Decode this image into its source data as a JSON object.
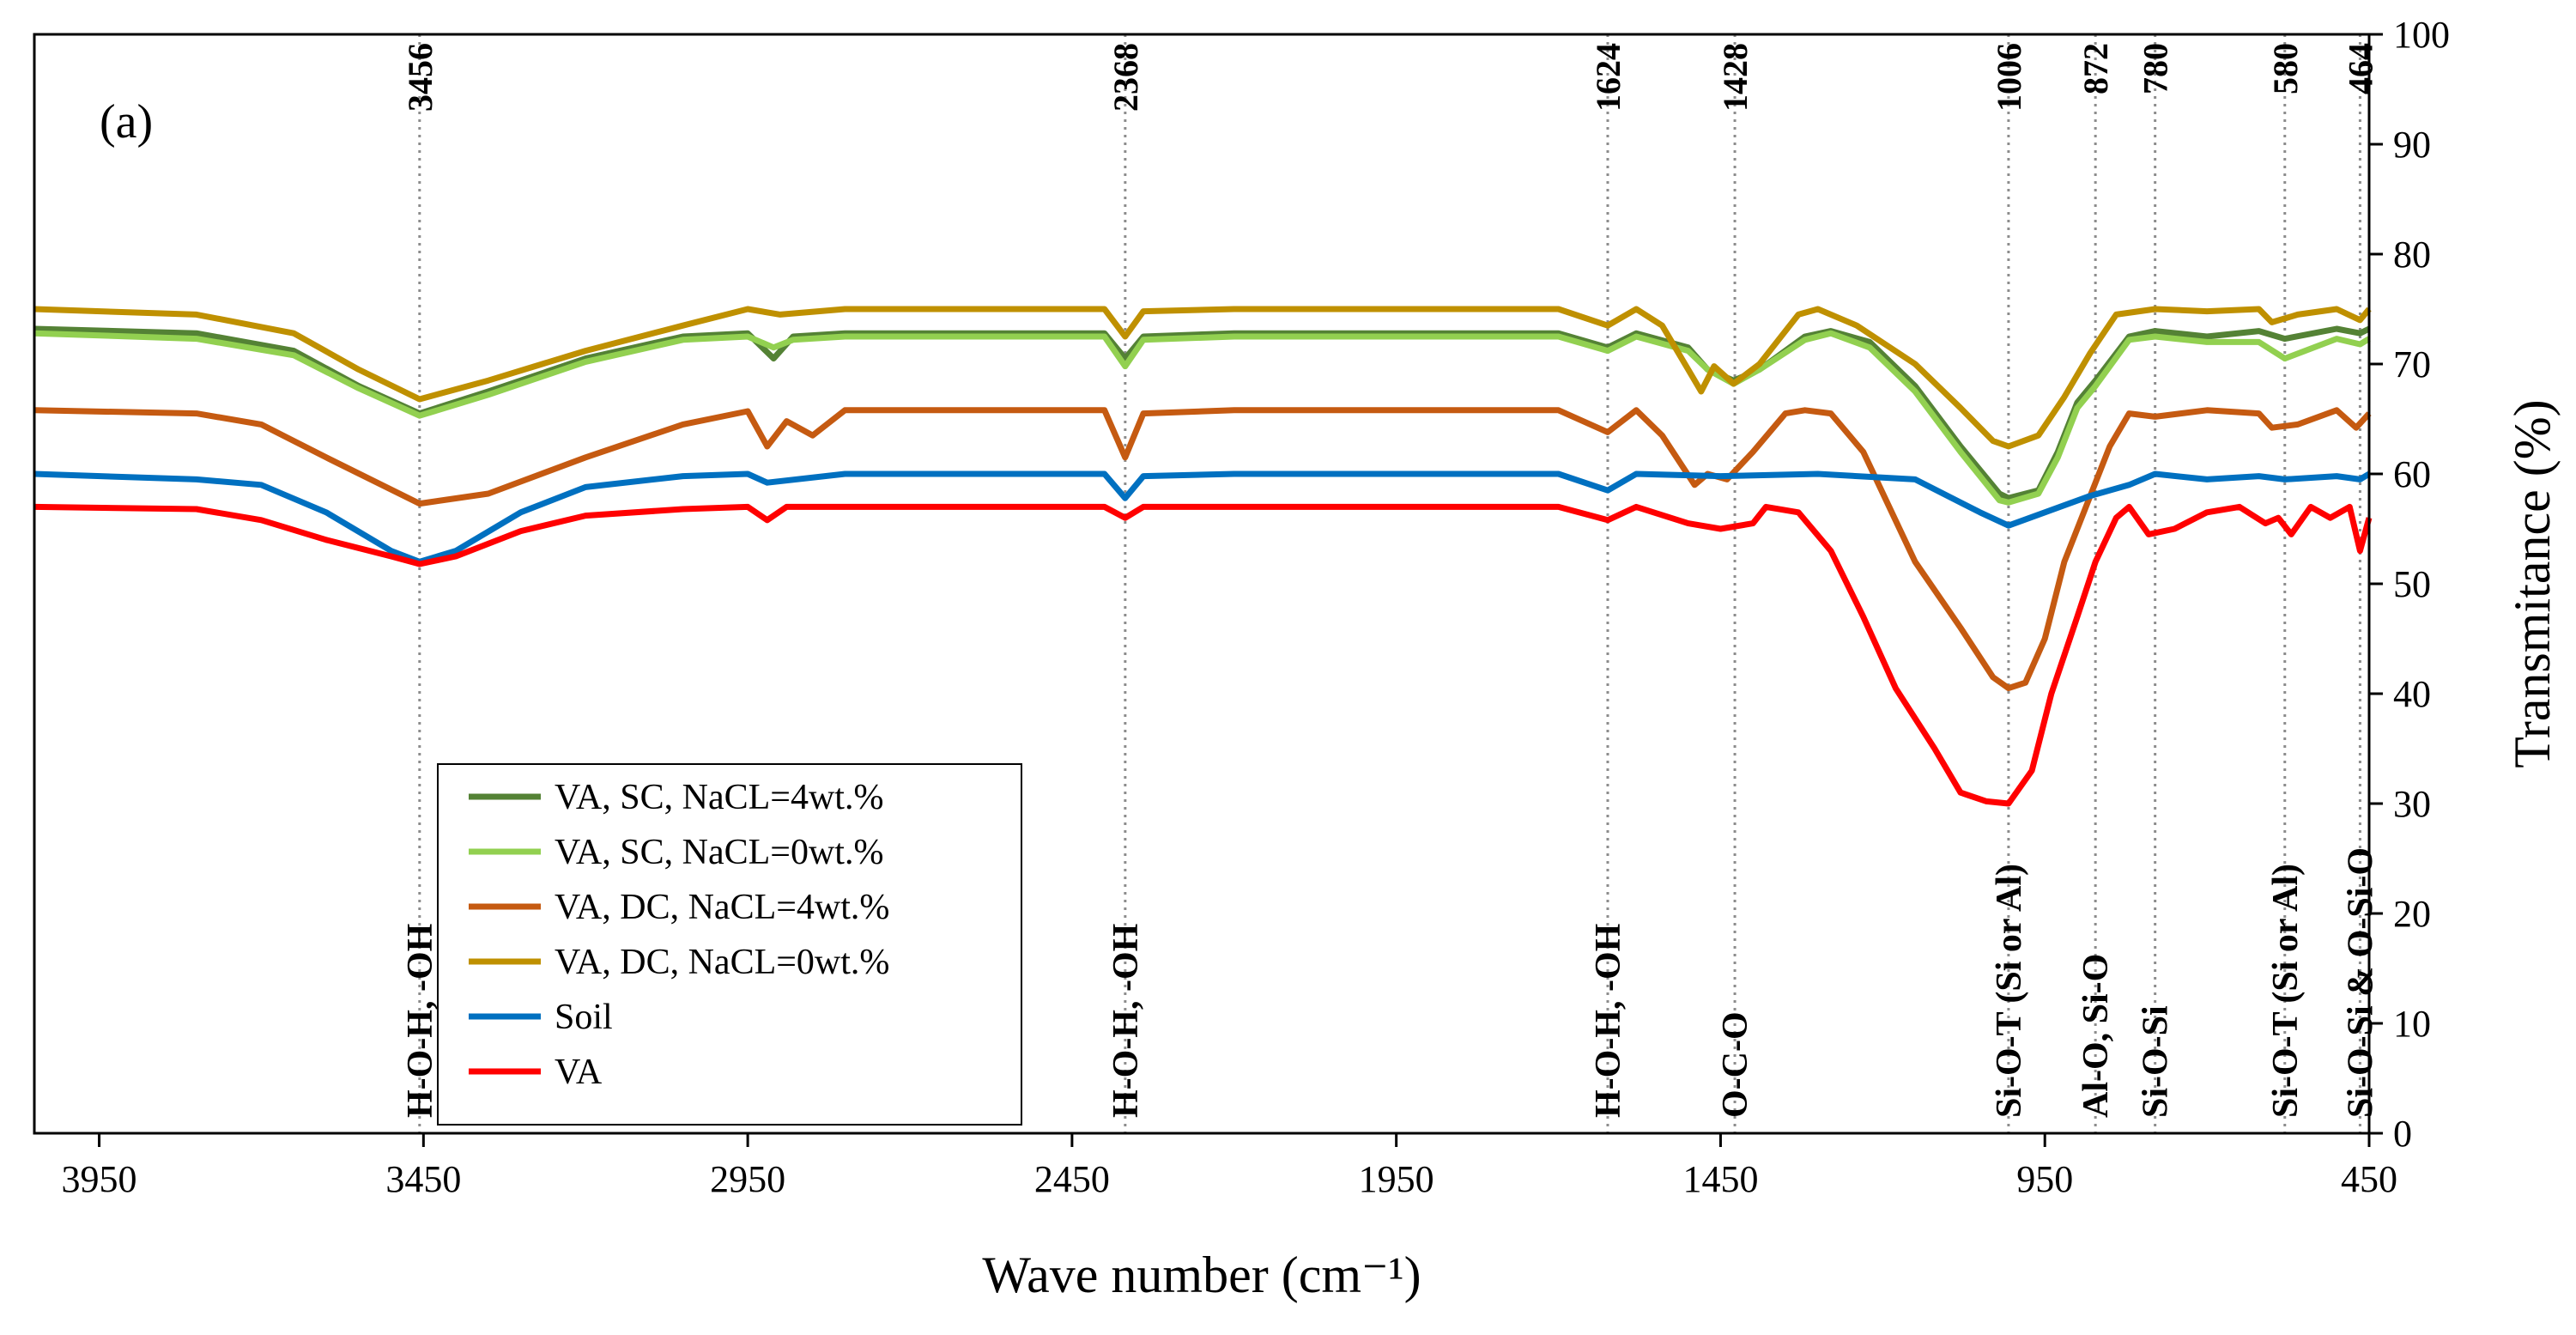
{
  "chart_data": {
    "type": "line",
    "panel_label": "(a)",
    "xlabel": "Wave number (cm⁻¹)",
    "ylabel": "Transmitance (%)",
    "xlim": [
      4050,
      450
    ],
    "ylim": [
      0,
      100
    ],
    "x_ticks": [
      3950,
      3450,
      2950,
      2450,
      1950,
      1450,
      950,
      450
    ],
    "y_ticks": [
      0,
      10,
      20,
      30,
      40,
      50,
      60,
      70,
      80,
      90,
      100
    ],
    "peaks": [
      {
        "x": 3456,
        "label": "3456"
      },
      {
        "x": 2368,
        "label": "2368"
      },
      {
        "x": 1624,
        "label": "1624"
      },
      {
        "x": 1428,
        "label": "1428"
      },
      {
        "x": 1006,
        "label": "1006"
      },
      {
        "x": 872,
        "label": "872"
      },
      {
        "x": 780,
        "label": "780"
      },
      {
        "x": 580,
        "label": "580"
      },
      {
        "x": 464,
        "label": "464"
      }
    ],
    "group_labels": [
      {
        "x": 3456,
        "text": "H-O-H, -OH"
      },
      {
        "x": 2368,
        "text": "H-O-H, -OH"
      },
      {
        "x": 1624,
        "text": "H-O-H, -OH"
      },
      {
        "x": 1428,
        "text": "O-C-O"
      },
      {
        "x": 1006,
        "text": "Si-O-T (Si or Al)"
      },
      {
        "x": 872,
        "text": "Al-O, Si-O"
      },
      {
        "x": 780,
        "text": "Si-O-Si"
      },
      {
        "x": 580,
        "text": "Si-O-T (Si or Al)"
      },
      {
        "x": 464,
        "text": "Si-O-Si & O-Si-O"
      }
    ],
    "series": [
      {
        "name": "VA, SC, NaCL=4wt.%",
        "color": "#548235",
        "points": [
          [
            4050,
            73.2
          ],
          [
            3800,
            72.8
          ],
          [
            3650,
            71.2
          ],
          [
            3550,
            68
          ],
          [
            3456,
            65.5
          ],
          [
            3350,
            67.5
          ],
          [
            3200,
            70.5
          ],
          [
            3050,
            72.5
          ],
          [
            2950,
            72.8
          ],
          [
            2910,
            70.5
          ],
          [
            2880,
            72.5
          ],
          [
            2800,
            72.8
          ],
          [
            2400,
            72.8
          ],
          [
            2368,
            70.5
          ],
          [
            2340,
            72.5
          ],
          [
            2200,
            72.8
          ],
          [
            1700,
            72.8
          ],
          [
            1624,
            71.5
          ],
          [
            1580,
            72.8
          ],
          [
            1500,
            71.5
          ],
          [
            1470,
            69.5
          ],
          [
            1430,
            68.5
          ],
          [
            1390,
            69.5
          ],
          [
            1320,
            72.5
          ],
          [
            1280,
            73
          ],
          [
            1220,
            72
          ],
          [
            1150,
            68
          ],
          [
            1080,
            62.5
          ],
          [
            1020,
            58.2
          ],
          [
            1006,
            57.8
          ],
          [
            960,
            58.5
          ],
          [
            930,
            62
          ],
          [
            900,
            66.5
          ],
          [
            872,
            68.5
          ],
          [
            820,
            72.5
          ],
          [
            780,
            73
          ],
          [
            700,
            72.5
          ],
          [
            620,
            73
          ],
          [
            580,
            72.3
          ],
          [
            500,
            73.2
          ],
          [
            464,
            72.8
          ],
          [
            450,
            73.2
          ]
        ]
      },
      {
        "name": "VA, SC, NaCL=0wt.%",
        "color": "#92D050",
        "points": [
          [
            4050,
            72.8
          ],
          [
            3800,
            72.3
          ],
          [
            3650,
            70.8
          ],
          [
            3550,
            67.8
          ],
          [
            3456,
            65.3
          ],
          [
            3350,
            67.2
          ],
          [
            3200,
            70.2
          ],
          [
            3050,
            72.2
          ],
          [
            2950,
            72.5
          ],
          [
            2910,
            71.5
          ],
          [
            2880,
            72.2
          ],
          [
            2800,
            72.5
          ],
          [
            2400,
            72.5
          ],
          [
            2368,
            69.8
          ],
          [
            2340,
            72.2
          ],
          [
            2200,
            72.5
          ],
          [
            1700,
            72.5
          ],
          [
            1624,
            71.2
          ],
          [
            1580,
            72.5
          ],
          [
            1500,
            71.2
          ],
          [
            1470,
            69.5
          ],
          [
            1430,
            68.2
          ],
          [
            1390,
            69.5
          ],
          [
            1320,
            72.2
          ],
          [
            1280,
            72.8
          ],
          [
            1220,
            71.5
          ],
          [
            1150,
            67.5
          ],
          [
            1080,
            62
          ],
          [
            1020,
            57.6
          ],
          [
            1006,
            57.4
          ],
          [
            960,
            58.2
          ],
          [
            930,
            61.5
          ],
          [
            900,
            66
          ],
          [
            872,
            68
          ],
          [
            820,
            72.2
          ],
          [
            780,
            72.5
          ],
          [
            700,
            72
          ],
          [
            620,
            72
          ],
          [
            580,
            70.5
          ],
          [
            500,
            72.3
          ],
          [
            464,
            71.8
          ],
          [
            450,
            72.3
          ]
        ]
      },
      {
        "name": "VA, DC, NaCL=4wt.%",
        "color": "#C55A11",
        "points": [
          [
            4050,
            65.8
          ],
          [
            3800,
            65.5
          ],
          [
            3700,
            64.5
          ],
          [
            3600,
            61.5
          ],
          [
            3456,
            57.3
          ],
          [
            3350,
            58.2
          ],
          [
            3200,
            61.5
          ],
          [
            3050,
            64.5
          ],
          [
            2950,
            65.7
          ],
          [
            2920,
            62.5
          ],
          [
            2890,
            64.8
          ],
          [
            2850,
            63.5
          ],
          [
            2800,
            65.8
          ],
          [
            2400,
            65.8
          ],
          [
            2368,
            61.5
          ],
          [
            2340,
            65.5
          ],
          [
            2200,
            65.8
          ],
          [
            1700,
            65.8
          ],
          [
            1624,
            63.8
          ],
          [
            1580,
            65.8
          ],
          [
            1540,
            63.5
          ],
          [
            1490,
            59
          ],
          [
            1470,
            60
          ],
          [
            1440,
            59.5
          ],
          [
            1400,
            62
          ],
          [
            1350,
            65.5
          ],
          [
            1320,
            65.8
          ],
          [
            1280,
            65.5
          ],
          [
            1230,
            62
          ],
          [
            1150,
            52
          ],
          [
            1080,
            46
          ],
          [
            1030,
            41.5
          ],
          [
            1006,
            40.5
          ],
          [
            980,
            41
          ],
          [
            950,
            45
          ],
          [
            920,
            52
          ],
          [
            880,
            58
          ],
          [
            850,
            62.5
          ],
          [
            820,
            65.5
          ],
          [
            780,
            65.2
          ],
          [
            700,
            65.8
          ],
          [
            620,
            65.5
          ],
          [
            600,
            64.2
          ],
          [
            560,
            64.5
          ],
          [
            500,
            65.8
          ],
          [
            470,
            64.2
          ],
          [
            450,
            65.5
          ]
        ]
      },
      {
        "name": "VA, DC, NaCL=0wt.%",
        "color": "#BF9000",
        "points": [
          [
            4050,
            75
          ],
          [
            3800,
            74.5
          ],
          [
            3650,
            72.8
          ],
          [
            3550,
            69.5
          ],
          [
            3456,
            66.8
          ],
          [
            3350,
            68.5
          ],
          [
            3200,
            71.2
          ],
          [
            3050,
            73.5
          ],
          [
            2950,
            75
          ],
          [
            2900,
            74.5
          ],
          [
            2800,
            75
          ],
          [
            2400,
            75
          ],
          [
            2368,
            72.5
          ],
          [
            2340,
            74.8
          ],
          [
            2200,
            75
          ],
          [
            1700,
            75
          ],
          [
            1624,
            73.5
          ],
          [
            1580,
            75
          ],
          [
            1540,
            73.5
          ],
          [
            1500,
            69.5
          ],
          [
            1480,
            67.5
          ],
          [
            1460,
            69.8
          ],
          [
            1430,
            68.2
          ],
          [
            1390,
            70
          ],
          [
            1330,
            74.5
          ],
          [
            1300,
            75
          ],
          [
            1240,
            73.5
          ],
          [
            1150,
            70
          ],
          [
            1080,
            66
          ],
          [
            1030,
            63
          ],
          [
            1006,
            62.5
          ],
          [
            960,
            63.5
          ],
          [
            920,
            67
          ],
          [
            880,
            71
          ],
          [
            840,
            74.5
          ],
          [
            780,
            75
          ],
          [
            700,
            74.8
          ],
          [
            620,
            75
          ],
          [
            600,
            73.8
          ],
          [
            560,
            74.5
          ],
          [
            500,
            75
          ],
          [
            464,
            74
          ],
          [
            450,
            75
          ]
        ]
      },
      {
        "name": "Soil",
        "color": "#0070C0",
        "points": [
          [
            4050,
            60
          ],
          [
            3800,
            59.5
          ],
          [
            3700,
            59
          ],
          [
            3600,
            56.5
          ],
          [
            3500,
            53
          ],
          [
            3456,
            52
          ],
          [
            3400,
            53
          ],
          [
            3300,
            56.5
          ],
          [
            3200,
            58.8
          ],
          [
            3050,
            59.8
          ],
          [
            2950,
            60
          ],
          [
            2920,
            59.2
          ],
          [
            2800,
            60
          ],
          [
            2400,
            60
          ],
          [
            2368,
            57.8
          ],
          [
            2340,
            59.8
          ],
          [
            2200,
            60
          ],
          [
            1700,
            60
          ],
          [
            1624,
            58.5
          ],
          [
            1580,
            60
          ],
          [
            1450,
            59.8
          ],
          [
            1300,
            60
          ],
          [
            1150,
            59.5
          ],
          [
            1050,
            56.5
          ],
          [
            1006,
            55.3
          ],
          [
            950,
            56.5
          ],
          [
            880,
            58
          ],
          [
            820,
            59
          ],
          [
            780,
            60
          ],
          [
            700,
            59.5
          ],
          [
            620,
            59.8
          ],
          [
            580,
            59.5
          ],
          [
            500,
            59.8
          ],
          [
            464,
            59.5
          ],
          [
            450,
            60
          ]
        ]
      },
      {
        "name": "VA",
        "color": "#FF0000",
        "points": [
          [
            4050,
            57
          ],
          [
            3800,
            56.8
          ],
          [
            3700,
            55.8
          ],
          [
            3600,
            54
          ],
          [
            3500,
            52.5
          ],
          [
            3456,
            51.8
          ],
          [
            3400,
            52.5
          ],
          [
            3300,
            54.8
          ],
          [
            3200,
            56.2
          ],
          [
            3050,
            56.8
          ],
          [
            2950,
            57
          ],
          [
            2920,
            55.8
          ],
          [
            2890,
            57
          ],
          [
            2800,
            57
          ],
          [
            2400,
            57
          ],
          [
            2368,
            56
          ],
          [
            2340,
            57
          ],
          [
            2200,
            57
          ],
          [
            1700,
            57
          ],
          [
            1624,
            55.8
          ],
          [
            1580,
            57
          ],
          [
            1500,
            55.5
          ],
          [
            1450,
            55
          ],
          [
            1400,
            55.5
          ],
          [
            1380,
            57
          ],
          [
            1330,
            56.5
          ],
          [
            1280,
            53
          ],
          [
            1230,
            47
          ],
          [
            1180,
            40.5
          ],
          [
            1120,
            35
          ],
          [
            1080,
            31
          ],
          [
            1040,
            30.2
          ],
          [
            1006,
            30
          ],
          [
            970,
            33
          ],
          [
            940,
            40
          ],
          [
            900,
            47
          ],
          [
            872,
            52
          ],
          [
            840,
            56
          ],
          [
            820,
            57
          ],
          [
            790,
            54.5
          ],
          [
            750,
            55
          ],
          [
            700,
            56.5
          ],
          [
            650,
            57
          ],
          [
            610,
            55.5
          ],
          [
            590,
            56
          ],
          [
            570,
            54.5
          ],
          [
            540,
            57
          ],
          [
            510,
            56
          ],
          [
            480,
            57
          ],
          [
            464,
            53
          ],
          [
            450,
            56
          ]
        ]
      }
    ]
  }
}
